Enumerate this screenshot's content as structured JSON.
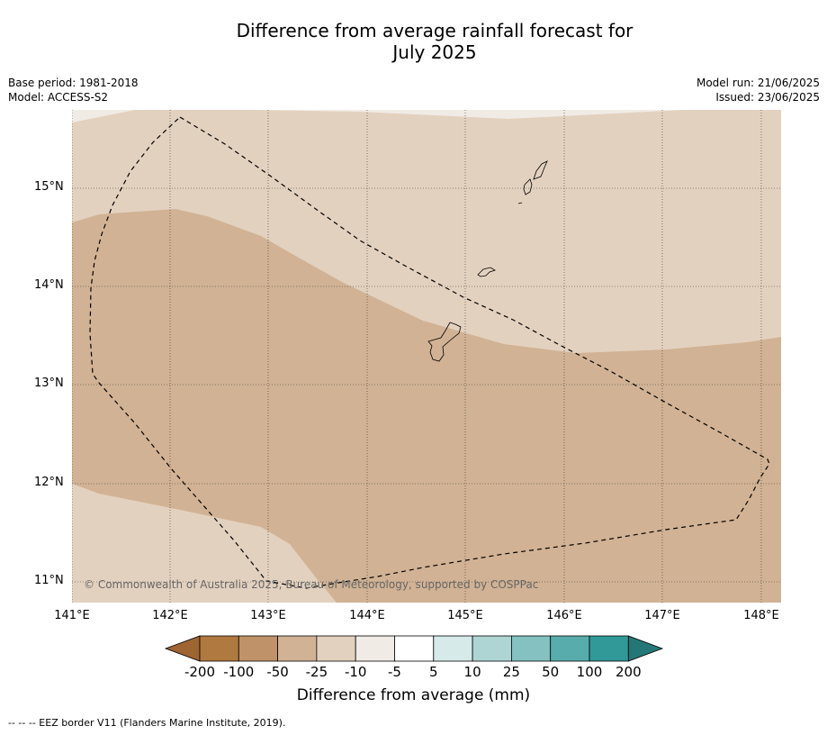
{
  "title_line1": "Difference from average rainfall forecast for",
  "title_line2": "July 2025",
  "meta_left": {
    "base_period": "Base period: 1981-2018",
    "model": "Model: ACCESS-S2"
  },
  "meta_right": {
    "model_run": "Model run: 21/06/2025",
    "issued": "Issued: 23/06/2025"
  },
  "map": {
    "lat_labels": [
      "15°N",
      "14°N",
      "13°N",
      "12°N",
      "11°N"
    ],
    "lon_labels": [
      "141°E",
      "142°E",
      "143°E",
      "144°E",
      "145°E",
      "146°E",
      "147°E",
      "148°E"
    ],
    "copyright": "© Commonwealth of Australia 2025, Bureau of Meteorology, supported by COSPPac",
    "region_colors": {
      "band_-25_-10": "#e3d1bf",
      "band_-50_-25": "#d1b294",
      "band_-10_-5": "#f1ebe6"
    }
  },
  "colorbar": {
    "title": "Difference from average (mm)",
    "tick_labels": [
      "-200",
      "-100",
      "-50",
      "-25",
      "-10",
      "-5",
      "5",
      "10",
      "25",
      "50",
      "100",
      "200"
    ],
    "colors": [
      "#9e6432",
      "#b0793f",
      "#c0926a",
      "#d1b294",
      "#e3d1bf",
      "#f1ebe6",
      "#ffffff",
      "#d6eaea",
      "#aed5d3",
      "#84c1c0",
      "#58adac",
      "#319997",
      "#237776"
    ]
  },
  "footnote": "--  --  -- EEZ border V11 (Flanders Marine Institute, 2019)."
}
